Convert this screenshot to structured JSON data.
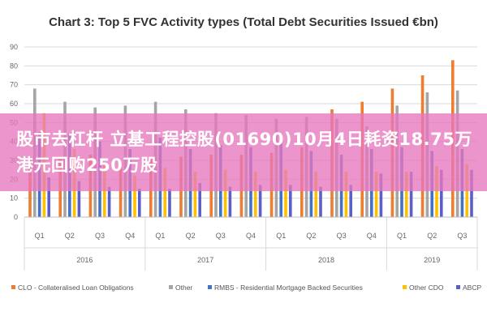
{
  "banner": {
    "text": "股市去杠杆 立基工程控股(01690)10月4日耗资18.75万港元回购250万股"
  },
  "colors": {
    "CLO": "#ed7d31",
    "Other": "#a5a5a5",
    "RMBS": "#4472c4",
    "OtherCDO": "#ffc000",
    "ABCP": "#5b5fc7"
  },
  "chart_data": {
    "type": "bar",
    "title": "Chart 3: Top 5 FVC Activity types (Total Debt Securities Issued €bn)",
    "ylim": [
      0,
      90
    ],
    "yticks": [
      "0",
      "10",
      "20",
      "30",
      "40",
      "50",
      "60",
      "70",
      "80",
      "90"
    ],
    "grid": true,
    "legend_position": "bottom",
    "categories": [
      "Q1",
      "Q2",
      "Q3",
      "Q4",
      "Q1",
      "Q2",
      "Q3",
      "Q4",
      "Q1",
      "Q2",
      "Q3",
      "Q4",
      "Q1",
      "Q2",
      "Q3"
    ],
    "years": [
      {
        "label": "2016",
        "quarters": 4
      },
      {
        "label": "2017",
        "quarters": 4
      },
      {
        "label": "2018",
        "quarters": 4
      },
      {
        "label": "2019",
        "quarters": 3
      }
    ],
    "series": [
      {
        "name": "CLO - Collateralised Loan Obligations",
        "key": "CLO",
        "values": [
          30,
          31,
          33,
          29,
          31,
          32,
          33,
          33,
          34,
          37,
          57,
          61,
          68,
          75,
          83
        ]
      },
      {
        "name": "Other",
        "key": "Other",
        "values": [
          68,
          61,
          58,
          59,
          61,
          57,
          55,
          54,
          52,
          53,
          52,
          48,
          59,
          66,
          67
        ]
      },
      {
        "name": "RMBS - Residential Mortgage Backed Securities",
        "key": "RMBS",
        "values": [
          45,
          44,
          40,
          36,
          42,
          36,
          38,
          37,
          40,
          35,
          33,
          36,
          37,
          35,
          36
        ]
      },
      {
        "name": "Other CDO",
        "key": "OtherCDO",
        "values": [
          55,
          36,
          28,
          22,
          26,
          24,
          25,
          24,
          25,
          24,
          24,
          24,
          24,
          27,
          28
        ]
      },
      {
        "name": "ABCP",
        "key": "ABCP",
        "values": [
          21,
          19,
          16,
          15,
          15,
          18,
          16,
          17,
          17,
          16,
          17,
          23,
          24,
          25,
          25
        ]
      }
    ]
  }
}
